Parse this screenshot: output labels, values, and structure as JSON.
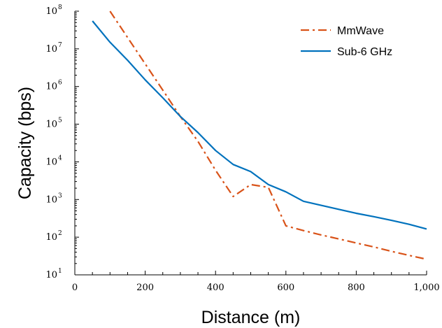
{
  "chart_data": {
    "type": "line",
    "xlabel": "Distance (m)",
    "ylabel": "Capacity (bps)",
    "xlim": [
      0,
      1000
    ],
    "ylim": [
      10,
      100000000
    ],
    "yscale": "log",
    "grid": false,
    "legend_position": "top-right",
    "x_ticks": [
      {
        "value": 0,
        "label": "0"
      },
      {
        "value": 200,
        "label": "200"
      },
      {
        "value": 400,
        "label": "400"
      },
      {
        "value": 600,
        "label": "600"
      },
      {
        "value": 800,
        "label": "800"
      },
      {
        "value": 1000,
        "label": "1,000"
      }
    ],
    "y_ticks": [
      {
        "value": 10,
        "base": "10",
        "exp": "1"
      },
      {
        "value": 100,
        "base": "10",
        "exp": "2"
      },
      {
        "value": 1000,
        "base": "10",
        "exp": "3"
      },
      {
        "value": 10000,
        "base": "10",
        "exp": "4"
      },
      {
        "value": 100000,
        "base": "10",
        "exp": "5"
      },
      {
        "value": 1000000,
        "base": "10",
        "exp": "6"
      },
      {
        "value": 10000000,
        "base": "10",
        "exp": "7"
      },
      {
        "value": 100000000,
        "base": "10",
        "exp": "8"
      }
    ],
    "series": [
      {
        "name": "MmWave",
        "color": "#D95319",
        "dash": "dashdot",
        "x": [
          100,
          150,
          200,
          250,
          300,
          350,
          400,
          450,
          500,
          550,
          600,
          650,
          700,
          750,
          800,
          850,
          900,
          950,
          1000
        ],
        "y": [
          100000000,
          20000000,
          4000000,
          800000,
          160000,
          35000,
          6000,
          1200,
          2500,
          2100,
          200,
          150,
          115,
          90,
          70,
          55,
          42,
          33,
          26
        ]
      },
      {
        "name": "Sub-6 GHz",
        "color": "#0072BD",
        "dash": "solid",
        "x": [
          50,
          100,
          150,
          200,
          250,
          300,
          350,
          400,
          450,
          500,
          550,
          600,
          650,
          700,
          750,
          800,
          850,
          900,
          950,
          1000
        ],
        "y": [
          55000000,
          15000000,
          5000000,
          1500000,
          500000,
          160000,
          60000,
          20000,
          8500,
          5500,
          2500,
          1600,
          900,
          700,
          550,
          430,
          350,
          280,
          220,
          165
        ]
      }
    ]
  }
}
